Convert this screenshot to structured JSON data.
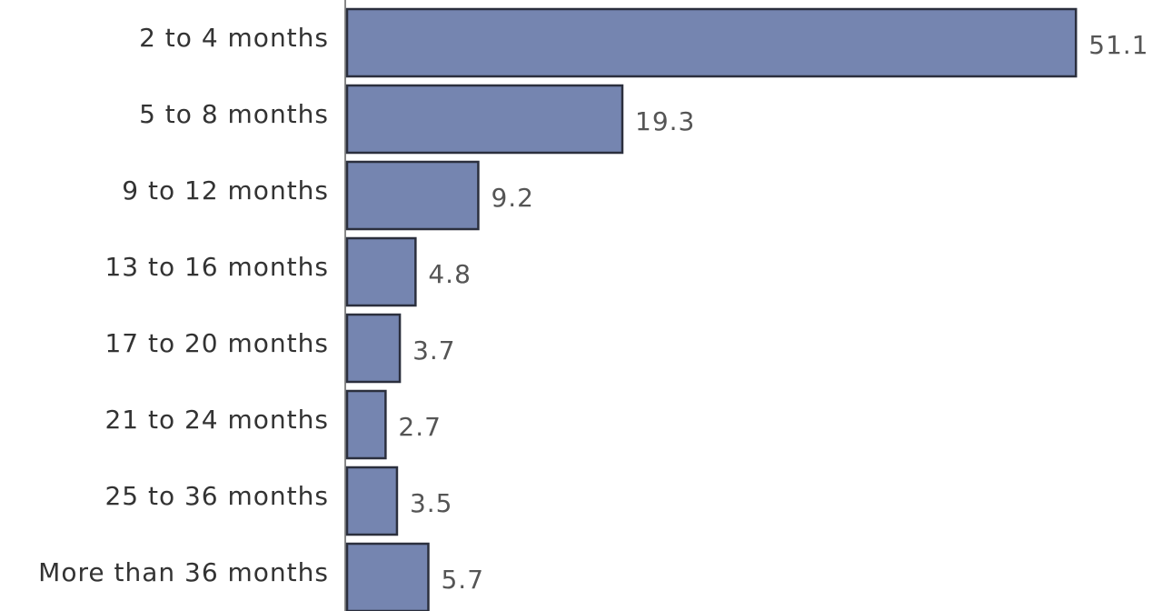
{
  "chart_data": {
    "type": "bar",
    "orientation": "horizontal",
    "categories": [
      "2 to 4 months",
      "5 to 8 months",
      "9 to 12 months",
      "13 to 16 months",
      "17 to 20 months",
      "21 to 24 months",
      "25 to 36 months",
      "More than 36 months"
    ],
    "values": [
      51.1,
      19.3,
      9.2,
      4.8,
      3.7,
      2.7,
      3.5,
      5.7
    ],
    "value_labels": [
      "51.1",
      "19.3",
      "9.2",
      "4.8",
      "3.7",
      "2.7",
      "3.5",
      "5.7"
    ],
    "title": "",
    "xlabel": "",
    "ylabel": "",
    "grid": false,
    "legend": "none",
    "colors": {
      "bar_fill": "#7585b0",
      "bar_stroke": "#2b2f3d",
      "axis": "#888888"
    }
  }
}
